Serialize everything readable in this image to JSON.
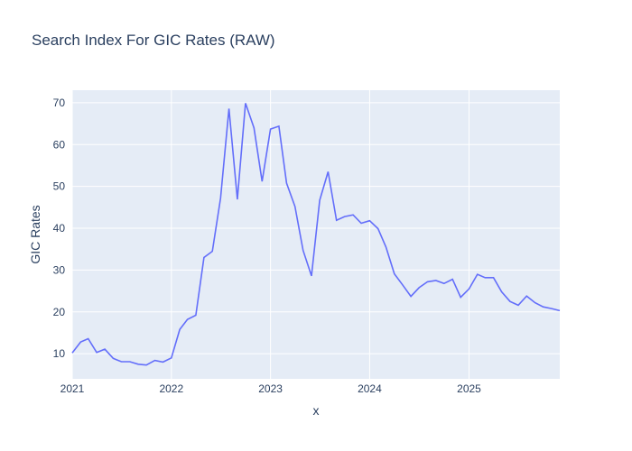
{
  "chart_data": {
    "type": "line",
    "title": "Search Index For GIC Rates (RAW)",
    "xlabel": "x",
    "ylabel": "GIC Rates",
    "x_tick_labels": [
      "2021",
      "2022",
      "2023",
      "2024",
      "2025"
    ],
    "y_tick_labels": [
      "10",
      "20",
      "30",
      "40",
      "50",
      "60",
      "70"
    ],
    "y_ticks": [
      10,
      20,
      30,
      40,
      50,
      60,
      70
    ],
    "x_ticks": [
      "2021-01-01",
      "2022-01-01",
      "2023-01-01",
      "2024-01-01",
      "2025-01-01"
    ],
    "xlim": [
      "2021-01-01",
      "2025-12-01"
    ],
    "ylim": [
      4,
      73
    ],
    "grid": true,
    "line_color": "#636efa",
    "plot_bg": "#e5ecf6",
    "series": [
      {
        "x": [
          "2021-01-01",
          "2021-02-01",
          "2021-03-01",
          "2021-04-01",
          "2021-05-01",
          "2021-06-01",
          "2021-07-01",
          "2021-08-01",
          "2021-09-01",
          "2021-10-01",
          "2021-11-01",
          "2021-12-01",
          "2022-01-01",
          "2022-02-01",
          "2022-03-01",
          "2022-04-01",
          "2022-05-01",
          "2022-06-01",
          "2022-07-01",
          "2022-08-01",
          "2022-09-01",
          "2022-10-01",
          "2022-11-01",
          "2022-12-01",
          "2023-01-01",
          "2023-02-01",
          "2023-03-01",
          "2023-04-01",
          "2023-05-01",
          "2023-06-01",
          "2023-07-01",
          "2023-08-01",
          "2023-09-01",
          "2023-10-01",
          "2023-11-01",
          "2023-12-01",
          "2024-01-01",
          "2024-02-01",
          "2024-03-01",
          "2024-04-01",
          "2024-05-01",
          "2024-06-01",
          "2024-07-01",
          "2024-08-01",
          "2024-09-01",
          "2024-10-01",
          "2024-11-01",
          "2024-12-01",
          "2025-01-01",
          "2025-02-01",
          "2025-03-01",
          "2025-04-01",
          "2025-05-01",
          "2025-06-01",
          "2025-07-01",
          "2025-08-01",
          "2025-09-01",
          "2025-10-01",
          "2025-11-01",
          "2025-12-01"
        ],
        "values": [
          10.2,
          12.8,
          13.6,
          10.3,
          11.1,
          8.9,
          8.1,
          8.1,
          7.5,
          7.3,
          8.4,
          8.0,
          9.0,
          15.8,
          18.2,
          19.2,
          33.0,
          34.5,
          47.2,
          68.6,
          46.9,
          69.9,
          64.0,
          51.2,
          63.7,
          64.4,
          50.8,
          45.2,
          34.7,
          28.6,
          46.7,
          53.5,
          41.9,
          42.8,
          43.2,
          41.2,
          41.8,
          39.9,
          35.5,
          29.1,
          26.5,
          23.7,
          25.8,
          27.2,
          27.5,
          26.8,
          27.8,
          23.5,
          25.5,
          29.0,
          28.2,
          28.2,
          24.8,
          22.5,
          21.6,
          23.8,
          22.2,
          21.2,
          20.8,
          20.3
        ]
      }
    ]
  }
}
